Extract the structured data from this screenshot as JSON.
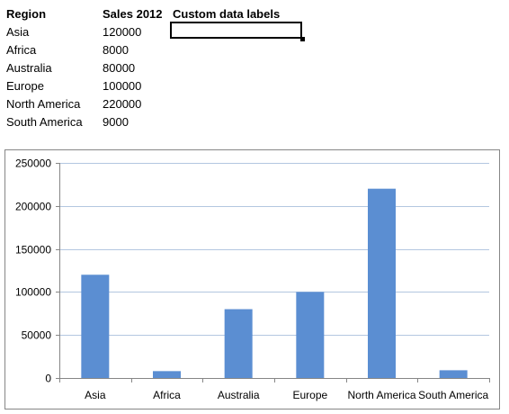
{
  "table": {
    "headers": [
      "Region",
      "Sales 2012",
      "Custom data labels"
    ],
    "rows": [
      {
        "region": "Asia",
        "sales": "120000"
      },
      {
        "region": "Africa",
        "sales": "8000"
      },
      {
        "region": "Australia",
        "sales": "80000"
      },
      {
        "region": "Europe",
        "sales": "100000"
      },
      {
        "region": "North America",
        "sales": "220000"
      },
      {
        "region": "South America",
        "sales": "9000"
      }
    ]
  },
  "colors": {
    "bar": "#5b8ed2",
    "gridline": "#b3c7e0",
    "axis": "#868686",
    "chart_border": "#868686"
  },
  "chart_data": {
    "type": "bar",
    "categories": [
      "Asia",
      "Africa",
      "Australia",
      "Europe",
      "North America",
      "South America"
    ],
    "values": [
      120000,
      8000,
      80000,
      100000,
      220000,
      9000
    ],
    "title": "",
    "xlabel": "",
    "ylabel": "",
    "ylim": [
      0,
      250000
    ],
    "yticks": [
      "0",
      "50000",
      "100000",
      "150000",
      "200000",
      "250000"
    ],
    "grid": true,
    "legend": "none"
  }
}
